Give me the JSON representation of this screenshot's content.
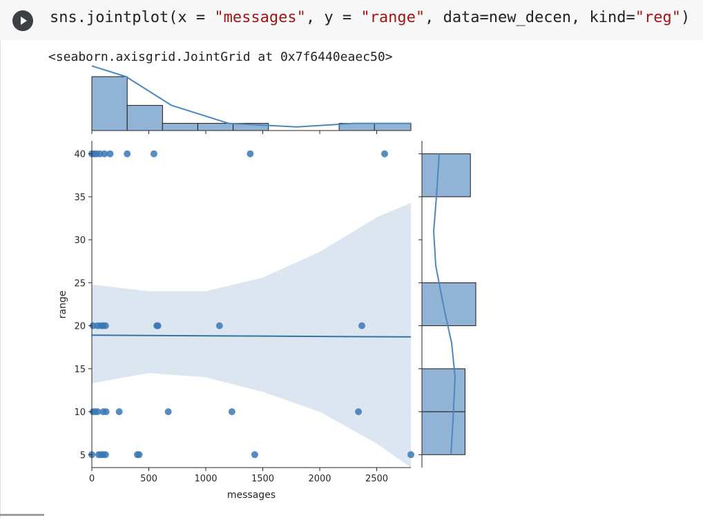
{
  "cell": {
    "run_icon": "play-icon",
    "code": {
      "p1": "sns.jointplot(x = ",
      "s1": "\"messages\"",
      "p2": ", y = ",
      "s2": "\"range\"",
      "p3": ", data=new_decen, kind=",
      "s3": "\"reg\"",
      "p4": ")"
    }
  },
  "output": {
    "text": "<seaborn.axisgrid.JointGrid at 0x7f6440eaec50>"
  },
  "chart_data": {
    "type": "scatter",
    "kind": "reg",
    "xlabel": "messages",
    "ylabel": "range",
    "xlim": [
      0,
      2800
    ],
    "ylim": [
      3.5,
      41.5
    ],
    "x_ticks": [
      "0",
      "500",
      "1000",
      "1500",
      "2000",
      "2500"
    ],
    "y_ticks": [
      "5",
      "10",
      "15",
      "20",
      "25",
      "30",
      "35",
      "40"
    ],
    "points": [
      {
        "x": 0,
        "y": 40
      },
      {
        "x": 20,
        "y": 40
      },
      {
        "x": 40,
        "y": 40
      },
      {
        "x": 70,
        "y": 40
      },
      {
        "x": 110,
        "y": 40
      },
      {
        "x": 160,
        "y": 40
      },
      {
        "x": 310,
        "y": 40
      },
      {
        "x": 545,
        "y": 40
      },
      {
        "x": 1390,
        "y": 40
      },
      {
        "x": 2570,
        "y": 40
      },
      {
        "x": 10,
        "y": 20
      },
      {
        "x": 50,
        "y": 20
      },
      {
        "x": 80,
        "y": 20
      },
      {
        "x": 100,
        "y": 20
      },
      {
        "x": 120,
        "y": 20
      },
      {
        "x": 570,
        "y": 20
      },
      {
        "x": 580,
        "y": 20
      },
      {
        "x": 1120,
        "y": 20
      },
      {
        "x": 2370,
        "y": 20
      },
      {
        "x": 10,
        "y": 10
      },
      {
        "x": 30,
        "y": 10
      },
      {
        "x": 50,
        "y": 10
      },
      {
        "x": 100,
        "y": 10
      },
      {
        "x": 125,
        "y": 10
      },
      {
        "x": 240,
        "y": 10
      },
      {
        "x": 670,
        "y": 10
      },
      {
        "x": 1230,
        "y": 10
      },
      {
        "x": 2340,
        "y": 10
      },
      {
        "x": 0,
        "y": 5
      },
      {
        "x": 60,
        "y": 5
      },
      {
        "x": 80,
        "y": 5
      },
      {
        "x": 100,
        "y": 5
      },
      {
        "x": 120,
        "y": 5
      },
      {
        "x": 400,
        "y": 5
      },
      {
        "x": 415,
        "y": 5
      },
      {
        "x": 1430,
        "y": 5
      },
      {
        "x": 2800,
        "y": 5
      }
    ],
    "regression": {
      "x": [
        0,
        2800
      ],
      "y": [
        18.9,
        18.7
      ]
    },
    "ci_band": {
      "x": [
        0,
        500,
        1000,
        1500,
        2000,
        2500,
        2800
      ],
      "lower": [
        13.3,
        14.5,
        14.0,
        12.3,
        10.0,
        6.3,
        3.5
      ],
      "upper": [
        24.8,
        24.0,
        24.0,
        25.6,
        28.6,
        32.6,
        34.3
      ]
    },
    "marginal_x": {
      "bins": [
        [
          0,
          310
        ],
        [
          310,
          620
        ],
        [
          620,
          930
        ],
        [
          930,
          1240
        ],
        [
          1240,
          1550
        ],
        [
          1550,
          1860
        ],
        [
          1860,
          2170
        ],
        [
          2170,
          2480
        ],
        [
          2480,
          2800
        ]
      ],
      "counts": [
        15,
        7,
        2,
        2,
        2,
        0,
        0,
        2,
        2
      ]
    },
    "marginal_y": {
      "bins": [
        [
          5,
          10
        ],
        [
          10,
          15
        ],
        [
          15,
          20
        ],
        [
          20,
          25
        ],
        [
          25,
          30
        ],
        [
          30,
          35
        ],
        [
          35,
          40
        ]
      ],
      "counts": [
        8,
        8,
        0,
        10,
        0,
        0,
        9
      ]
    },
    "colors": {
      "point": "#3a78b5",
      "line": "#3274a1",
      "band": "#dce6f1",
      "hist": "#91b4d6",
      "kde": "#4c86bd"
    }
  }
}
